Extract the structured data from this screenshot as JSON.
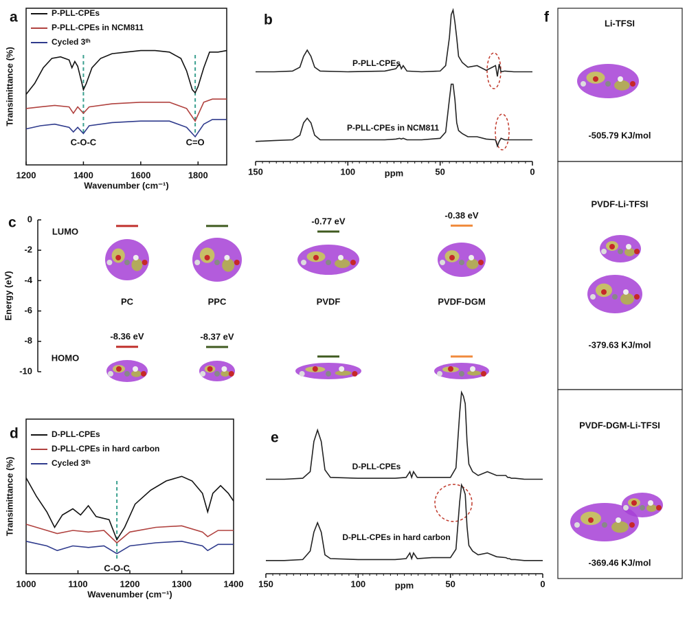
{
  "chart_data": [
    {
      "type": "line",
      "panel_label": "a",
      "xlabel": "Wavenumber (cm⁻¹)",
      "ylabel": "Transimittance (%)",
      "xlim": [
        1200,
        1900
      ],
      "xticks": [
        1200,
        1400,
        1600,
        1800
      ],
      "ylim": [
        0,
        100
      ],
      "annotations": [
        {
          "text": "C-O-C",
          "x": 1400
        },
        {
          "text": "C=O",
          "x": 1790
        }
      ],
      "series": [
        {
          "name": "P-PLL-CPEs",
          "color": "#111111",
          "x": [
            1200,
            1230,
            1260,
            1290,
            1320,
            1350,
            1360,
            1370,
            1380,
            1395,
            1400,
            1410,
            1430,
            1460,
            1500,
            1550,
            1600,
            1650,
            1700,
            1740,
            1760,
            1780,
            1790,
            1800,
            1820,
            1840,
            1870,
            1900
          ],
          "values": [
            45,
            52,
            62,
            68,
            69,
            67,
            62,
            66,
            63,
            52,
            48,
            52,
            62,
            68,
            71,
            72,
            73,
            73,
            72,
            68,
            60,
            48,
            46,
            50,
            62,
            72,
            72,
            73
          ]
        },
        {
          "name": "P-PLL-CPEs in NCM811",
          "color": "#b0413e",
          "x": [
            1200,
            1250,
            1300,
            1350,
            1365,
            1380,
            1400,
            1420,
            1500,
            1600,
            1700,
            1760,
            1790,
            1820,
            1850,
            1900
          ],
          "values": [
            36,
            37,
            38,
            37,
            33,
            37,
            33,
            37,
            39,
            40,
            40,
            36,
            28,
            40,
            42,
            42
          ]
        },
        {
          "name": "Cycled 3ᵗʰ",
          "color": "#2e3a8c",
          "x": [
            1200,
            1250,
            1300,
            1350,
            1365,
            1380,
            1400,
            1420,
            1500,
            1600,
            1700,
            1760,
            1790,
            1820,
            1850,
            1900
          ],
          "values": [
            23,
            25,
            26,
            24,
            21,
            24,
            20,
            25,
            27,
            28,
            28,
            24,
            18,
            26,
            29,
            29
          ]
        }
      ]
    },
    {
      "type": "line",
      "panel_label": "b",
      "xlabel": "ppm",
      "xlim": [
        150,
        0
      ],
      "xticks": [
        150,
        100,
        50,
        0
      ],
      "ylim": [
        0,
        100
      ],
      "series": [
        {
          "name": "P-PLL-CPEs",
          "color": "#222222",
          "x": [
            150,
            140,
            130,
            126,
            124,
            122,
            120,
            118,
            115,
            100,
            80,
            74,
            72,
            71,
            70,
            68,
            60,
            50,
            47,
            45,
            44,
            43,
            42,
            41,
            40,
            38,
            35,
            30,
            25,
            20,
            19,
            18,
            17,
            15,
            10,
            0
          ],
          "values": [
            58,
            58,
            58.5,
            61,
            68,
            72,
            68,
            61,
            58.5,
            58,
            58.5,
            60,
            63,
            60,
            62,
            58.5,
            58,
            58.5,
            62,
            80,
            95,
            98,
            90,
            80,
            68,
            64,
            61,
            62,
            59,
            62,
            55,
            63,
            58,
            58.5,
            58,
            58
          ]
        },
        {
          "name": "P-PLL-CPEs in NCM811",
          "color": "#222222",
          "x": [
            150,
            140,
            130,
            126,
            124,
            122,
            120,
            118,
            115,
            100,
            80,
            74,
            72,
            71,
            70,
            68,
            60,
            50,
            47,
            45,
            44,
            43,
            42,
            41,
            40,
            38,
            35,
            30,
            25,
            20,
            19,
            18,
            17,
            15,
            10,
            0
          ],
          "values": [
            13,
            13.5,
            14,
            17,
            25,
            28,
            25,
            17,
            14,
            14,
            14,
            14.5,
            15,
            14.5,
            15,
            14,
            14,
            15,
            19,
            40,
            50,
            50,
            40,
            25,
            20,
            18,
            16,
            16,
            14.5,
            14,
            10,
            13,
            15,
            14,
            14,
            14
          ]
        }
      ]
    },
    {
      "type": "energy-level",
      "panel_label": "c",
      "ylabel": "Energy (eV)",
      "ylim": [
        -10,
        0
      ],
      "yticks": [
        0,
        -2,
        -4,
        -6,
        -8,
        -10
      ],
      "categories": [
        "PC",
        "PPC",
        "PVDF",
        "PVDF-DGM"
      ],
      "colors": [
        "#c0302c",
        "#3f5a1f",
        "#3f5a1f",
        "#f08a3c"
      ],
      "series": [
        {
          "name": "LUMO",
          "values": [
            -0.4,
            -0.4,
            -0.77,
            -0.38
          ],
          "value_labels": [
            null,
            null,
            "-0.77 eV",
            "-0.38 eV"
          ]
        },
        {
          "name": "HOMO",
          "values": [
            -8.36,
            -8.37,
            -9.0,
            -9.0
          ],
          "value_labels": [
            "-8.36 eV",
            "-8.37 eV",
            null,
            null
          ]
        }
      ]
    },
    {
      "type": "line",
      "panel_label": "d",
      "xlabel": "Wavenumber (cm⁻¹)",
      "ylabel": "Transimittance (%)",
      "xlim": [
        1000,
        1400
      ],
      "xticks": [
        1000,
        1100,
        1200,
        1300,
        1400
      ],
      "ylim": [
        0,
        100
      ],
      "annotations": [
        {
          "text": "C-O-C",
          "x": 1175
        }
      ],
      "series": [
        {
          "name": "D-PLL-CPEs",
          "color": "#111111",
          "x": [
            1000,
            1020,
            1040,
            1055,
            1070,
            1090,
            1105,
            1120,
            1135,
            1160,
            1175,
            1190,
            1210,
            1240,
            1270,
            1300,
            1320,
            1340,
            1350,
            1360,
            1375,
            1390,
            1400
          ],
          "values": [
            62,
            50,
            40,
            30,
            38,
            42,
            38,
            44,
            37,
            35,
            22,
            30,
            45,
            54,
            60,
            63,
            60,
            52,
            40,
            52,
            57,
            52,
            47
          ]
        },
        {
          "name": "D-PLL-CPEs in hard carbon",
          "color": "#b0413e",
          "x": [
            1000,
            1040,
            1060,
            1090,
            1120,
            1150,
            1175,
            1200,
            1250,
            1300,
            1340,
            1350,
            1370,
            1400
          ],
          "values": [
            32,
            28,
            26,
            28,
            27,
            28,
            20,
            27,
            30,
            31,
            27,
            24,
            28,
            28
          ]
        },
        {
          "name": "Cycled 3ᵗʰ",
          "color": "#2e3a8c",
          "x": [
            1000,
            1040,
            1060,
            1090,
            1120,
            1150,
            1175,
            1200,
            1250,
            1300,
            1340,
            1350,
            1370,
            1400
          ],
          "values": [
            21,
            18,
            15,
            18,
            17,
            18,
            13,
            18,
            20,
            21,
            18,
            15,
            19,
            19
          ]
        }
      ]
    },
    {
      "type": "line",
      "panel_label": "e",
      "xlabel": "ppm",
      "xlim": [
        150,
        0
      ],
      "xticks": [
        150,
        100,
        50,
        0
      ],
      "ylim": [
        0,
        100
      ],
      "series": [
        {
          "name": "D-PLL-CPEs",
          "color": "#222222",
          "x": [
            150,
            140,
            130,
            126,
            124,
            122,
            120,
            118,
            115,
            100,
            80,
            74,
            72,
            71,
            70,
            68,
            60,
            50,
            47,
            45,
            44,
            43,
            42,
            41,
            40,
            38,
            35,
            30,
            25,
            20,
            19,
            18,
            17,
            15,
            10,
            0
          ],
          "values": [
            50,
            50,
            50.5,
            54,
            70,
            76,
            70,
            55,
            51,
            50.5,
            50.5,
            51,
            54,
            51,
            54,
            51,
            51,
            51,
            56,
            85,
            96,
            94,
            90,
            70,
            58,
            54,
            52,
            54,
            52,
            52,
            51,
            51,
            50.5,
            50.5,
            50,
            50
          ]
        },
        {
          "name": "D-PLL-CPEs in hard carbon",
          "color": "#222222",
          "x": [
            150,
            140,
            130,
            126,
            124,
            122,
            120,
            118,
            115,
            100,
            80,
            74,
            72,
            71,
            70,
            68,
            60,
            50,
            47,
            45,
            44,
            43,
            42,
            41,
            40,
            38,
            35,
            30,
            25,
            20,
            19,
            18,
            17,
            15,
            10,
            0
          ],
          "values": [
            7,
            7,
            7.5,
            12,
            22,
            27,
            22,
            10,
            8,
            7.5,
            7.5,
            8,
            11,
            8,
            11,
            8,
            8.5,
            8.5,
            13,
            38,
            47,
            45,
            42,
            25,
            15,
            12,
            10,
            11,
            9,
            8.5,
            8,
            8,
            7.5,
            7.5,
            7,
            7
          ]
        }
      ]
    }
  ],
  "panel_f": {
    "label": "f",
    "boxes": [
      {
        "title": "Li-TFSI",
        "energy": "-505.79 KJ/mol"
      },
      {
        "title": "PVDF-Li-TFSI",
        "energy": "-379.63 KJ/mol"
      },
      {
        "title": "PVDF-DGM-Li-TFSI",
        "energy": "-369.46 KJ/mol"
      }
    ]
  }
}
